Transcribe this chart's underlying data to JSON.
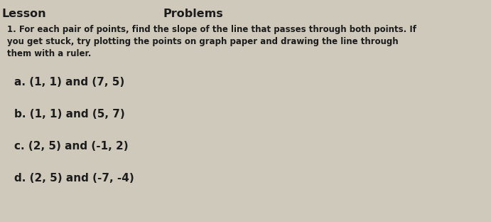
{
  "background_color": "#cfc9bc",
  "header_left": "Lesson",
  "header_right": "Problems",
  "intro_line1": "1. For each pair of points, find the slope of the line that passes through both points. If",
  "intro_line2": "you get stuck, try plotting the points on graph paper and drawing the line through",
  "intro_line3": "them with a ruler.",
  "item_a": "a. (1, 1) and (7, 5)",
  "item_b": "b. (1, 1) and (5, 7)",
  "item_c": "c. (2, 5) and (-1, 2)",
  "item_d": "d. (2, 5) and (-7, -4)",
  "text_color": "#1c1c1c",
  "font_size_header": 11.5,
  "font_size_intro": 8.5,
  "font_size_items": 11,
  "figwidth": 6.91,
  "figheight": 3.12,
  "dpi": 100
}
